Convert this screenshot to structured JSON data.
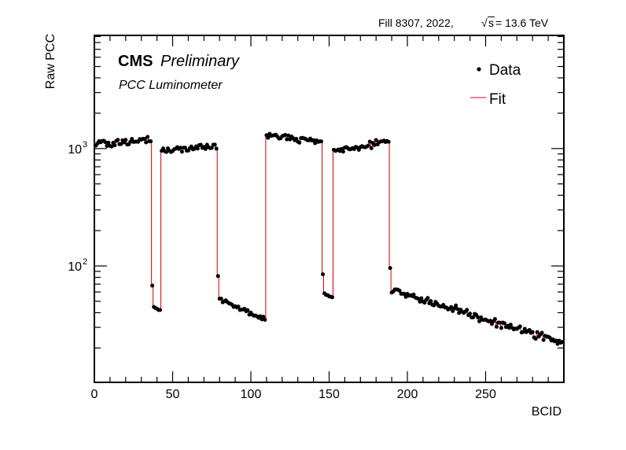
{
  "header": {
    "fill_info": "Fill 8307,  2022,",
    "energy_sqrt": "√",
    "energy_s": "s",
    "energy_value": " = 13.6 TeV"
  },
  "labels": {
    "cms": "CMS",
    "preliminary": "Preliminary",
    "subtitle": "PCC Luminometer"
  },
  "chart_data": {
    "type": "scatter",
    "xlabel": "BCID",
    "ylabel": "Raw PCC",
    "xlim": [
      0,
      300
    ],
    "ylim": [
      10.2,
      9200
    ],
    "yscale": "log",
    "x_ticks": [
      0,
      50,
      100,
      150,
      200,
      250
    ],
    "y_ticks": [
      {
        "value": 100,
        "base": "10",
        "exp": "2"
      },
      {
        "value": 1000,
        "base": "10",
        "exp": "3"
      }
    ],
    "legend_position": "top-right",
    "grid": false,
    "series": [
      {
        "name": "Data",
        "style": "points",
        "color": "#000000"
      },
      {
        "name": "Fit",
        "style": "step-line",
        "color": "#d40000"
      }
    ],
    "data_segments": [
      {
        "x_start": 1,
        "x_end": 36,
        "y_start": 1100,
        "y_end": 1200,
        "noise": 0.09
      },
      {
        "x_start": 37,
        "x_end": 37,
        "y_start": 68,
        "y_end": 68,
        "noise": 0
      },
      {
        "x_start": 38,
        "x_end": 42,
        "y_start": 45,
        "y_end": 41,
        "noise": 0.04
      },
      {
        "x_start": 43,
        "x_end": 78,
        "y_start": 950,
        "y_end": 1050,
        "noise": 0.07
      },
      {
        "x_start": 79,
        "x_end": 79,
        "y_start": 82,
        "y_end": 82,
        "noise": 0
      },
      {
        "x_start": 80,
        "x_end": 109,
        "y_start": 52,
        "y_end": 35,
        "noise": 0.05
      },
      {
        "x_start": 110,
        "x_end": 145,
        "y_start": 1300,
        "y_end": 1150,
        "noise": 0.08
      },
      {
        "x_start": 146,
        "x_end": 146,
        "y_start": 85,
        "y_end": 85,
        "noise": 0
      },
      {
        "x_start": 147,
        "x_end": 152,
        "y_start": 58,
        "y_end": 53,
        "noise": 0.04
      },
      {
        "x_start": 153,
        "x_end": 188,
        "y_start": 950,
        "y_end": 1150,
        "noise": 0.08
      },
      {
        "x_start": 189,
        "x_end": 189,
        "y_start": 96,
        "y_end": 96,
        "noise": 0
      },
      {
        "x_start": 190,
        "x_end": 300,
        "y_start": 62,
        "y_end": 22,
        "noise": 0.1
      }
    ]
  }
}
